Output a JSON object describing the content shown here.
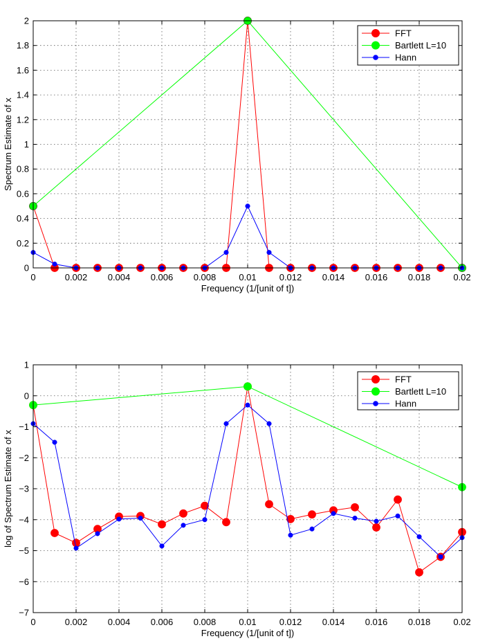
{
  "chart_data": [
    {
      "type": "line",
      "xlabel": "Frequency (1/[unit of t])",
      "ylabel": "Spectrum Estimate of x",
      "xlim": [
        0,
        0.02
      ],
      "ylim": [
        0,
        2
      ],
      "xticks": [
        0,
        0.002,
        0.004,
        0.006,
        0.008,
        0.01,
        0.012,
        0.014,
        0.016,
        0.018,
        0.02
      ],
      "xtick_labels": [
        "0",
        "0.002",
        "0.004",
        "0.006",
        "0.008",
        "0.01",
        "0.012",
        "0.014",
        "0.016",
        "0.018",
        "0.02"
      ],
      "yticks": [
        0,
        0.2,
        0.4,
        0.6,
        0.8,
        1,
        1.2,
        1.4,
        1.6,
        1.8,
        2
      ],
      "ytick_labels": [
        "0",
        "0.2",
        "0.4",
        "0.6",
        "0.8",
        "1",
        "1.2",
        "1.4",
        "1.6",
        "1.8",
        "2"
      ],
      "grid": true,
      "legend_position": "top-right",
      "series": [
        {
          "name": "FFT",
          "color": "#ff0000",
          "marker": "large-circle",
          "x": [
            0,
            0.001,
            0.002,
            0.003,
            0.004,
            0.005,
            0.006,
            0.007,
            0.008,
            0.009,
            0.01,
            0.011,
            0.012,
            0.013,
            0.014,
            0.015,
            0.016,
            0.017,
            0.018,
            0.019,
            0.02
          ],
          "y": [
            0.5,
            0.0,
            0.0,
            0.0,
            0.0,
            0.0,
            0.0,
            0.0,
            0.0,
            0.0,
            2.0,
            0.0,
            0.0,
            0.0,
            0.0,
            0.0,
            0.0,
            0.0,
            0.0,
            0.0,
            0.0
          ]
        },
        {
          "name": "Bartlett L=10",
          "color": "#00ff00",
          "marker": "large-circle",
          "x": [
            0,
            0.01,
            0.02
          ],
          "y": [
            0.5,
            2.0,
            0.0
          ]
        },
        {
          "name": "Hann",
          "color": "#0000ff",
          "marker": "small-dot",
          "x": [
            0,
            0.001,
            0.002,
            0.003,
            0.004,
            0.005,
            0.006,
            0.007,
            0.008,
            0.009,
            0.01,
            0.011,
            0.012,
            0.013,
            0.014,
            0.015,
            0.016,
            0.017,
            0.018,
            0.019,
            0.02
          ],
          "y": [
            0.125,
            0.031,
            0.0,
            0.0,
            0.0,
            0.0,
            0.0,
            0.0,
            0.0,
            0.125,
            0.5,
            0.125,
            0.0,
            0.0,
            0.0,
            0.0,
            0.0,
            0.0,
            0.0,
            0.0,
            0.0
          ]
        }
      ]
    },
    {
      "type": "line",
      "xlabel": "Frequency (1/[unit of t])",
      "ylabel": "log of Spectrum Estimate of x",
      "xlim": [
        0,
        0.02
      ],
      "ylim": [
        -7,
        1
      ],
      "xticks": [
        0,
        0.002,
        0.004,
        0.006,
        0.008,
        0.01,
        0.012,
        0.014,
        0.016,
        0.018,
        0.02
      ],
      "xtick_labels": [
        "0",
        "0.002",
        "0.004",
        "0.006",
        "0.008",
        "0.01",
        "0.012",
        "0.014",
        "0.016",
        "0.018",
        "0.02"
      ],
      "yticks": [
        -7,
        -6,
        -5,
        -4,
        -3,
        -2,
        -1,
        0,
        1
      ],
      "ytick_labels": [
        "−7",
        "−6",
        "−5",
        "−4",
        "−3",
        "−2",
        "−1",
        "0",
        "1"
      ],
      "grid": true,
      "legend_position": "top-right",
      "series": [
        {
          "name": "FFT",
          "color": "#ff0000",
          "marker": "large-circle",
          "x": [
            0,
            0.001,
            0.002,
            0.003,
            0.004,
            0.005,
            0.006,
            0.007,
            0.008,
            0.009,
            0.01,
            0.011,
            0.012,
            0.013,
            0.014,
            0.015,
            0.016,
            0.017,
            0.018,
            0.019,
            0.02
          ],
          "y": [
            -0.3,
            -4.43,
            -4.75,
            -4.3,
            -3.9,
            -3.88,
            -4.15,
            -3.8,
            -3.55,
            -4.08,
            0.3,
            -3.5,
            -3.98,
            -3.83,
            -3.7,
            -3.6,
            -4.25,
            -3.35,
            -5.7,
            -5.2,
            -4.4
          ]
        },
        {
          "name": "Bartlett L=10",
          "color": "#00ff00",
          "marker": "large-circle",
          "x": [
            0,
            0.01,
            0.02
          ],
          "y": [
            -0.3,
            0.3,
            -2.95
          ]
        },
        {
          "name": "Hann",
          "color": "#0000ff",
          "marker": "small-dot",
          "x": [
            0,
            0.001,
            0.002,
            0.003,
            0.004,
            0.005,
            0.006,
            0.007,
            0.008,
            0.009,
            0.01,
            0.011,
            0.012,
            0.013,
            0.014,
            0.015,
            0.016,
            0.017,
            0.018,
            0.019,
            0.02
          ],
          "y": [
            -0.9,
            -1.5,
            -4.92,
            -4.45,
            -3.98,
            -3.95,
            -4.85,
            -4.18,
            -4.0,
            -0.9,
            -0.3,
            -0.9,
            -4.5,
            -4.3,
            -3.8,
            -3.95,
            -4.05,
            -3.88,
            -4.55,
            -5.2,
            -4.58
          ]
        }
      ]
    }
  ]
}
